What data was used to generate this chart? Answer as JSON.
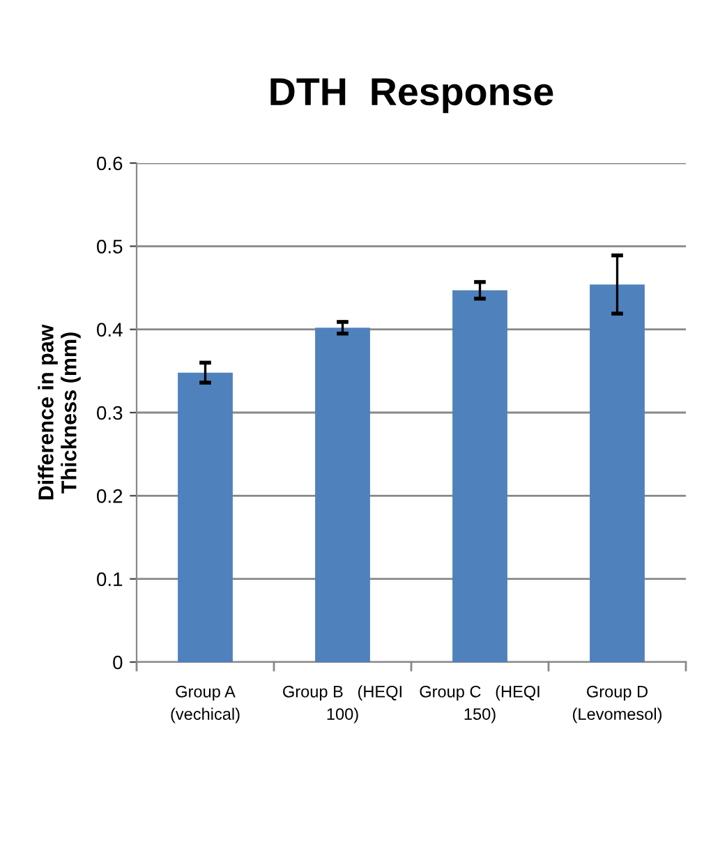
{
  "chart_data": {
    "type": "bar",
    "title": "DTH  Response",
    "ylabel": "Difference in paw\nThickness (mm)",
    "categories": [
      "Group A\n(vechical)",
      "Group B   (HEQI\n100)",
      "Group C   (HEQI\n150)",
      "Group D\n(Levomesol)"
    ],
    "values": [
      0.348,
      0.402,
      0.447,
      0.454
    ],
    "errors": [
      0.012,
      0.007,
      0.01,
      0.035
    ],
    "color": "#4f81bd",
    "ylim": [
      0,
      0.6
    ],
    "yticks": [
      0,
      0.1,
      0.2,
      0.3,
      0.4,
      0.5,
      0.6
    ],
    "grid": "y"
  }
}
